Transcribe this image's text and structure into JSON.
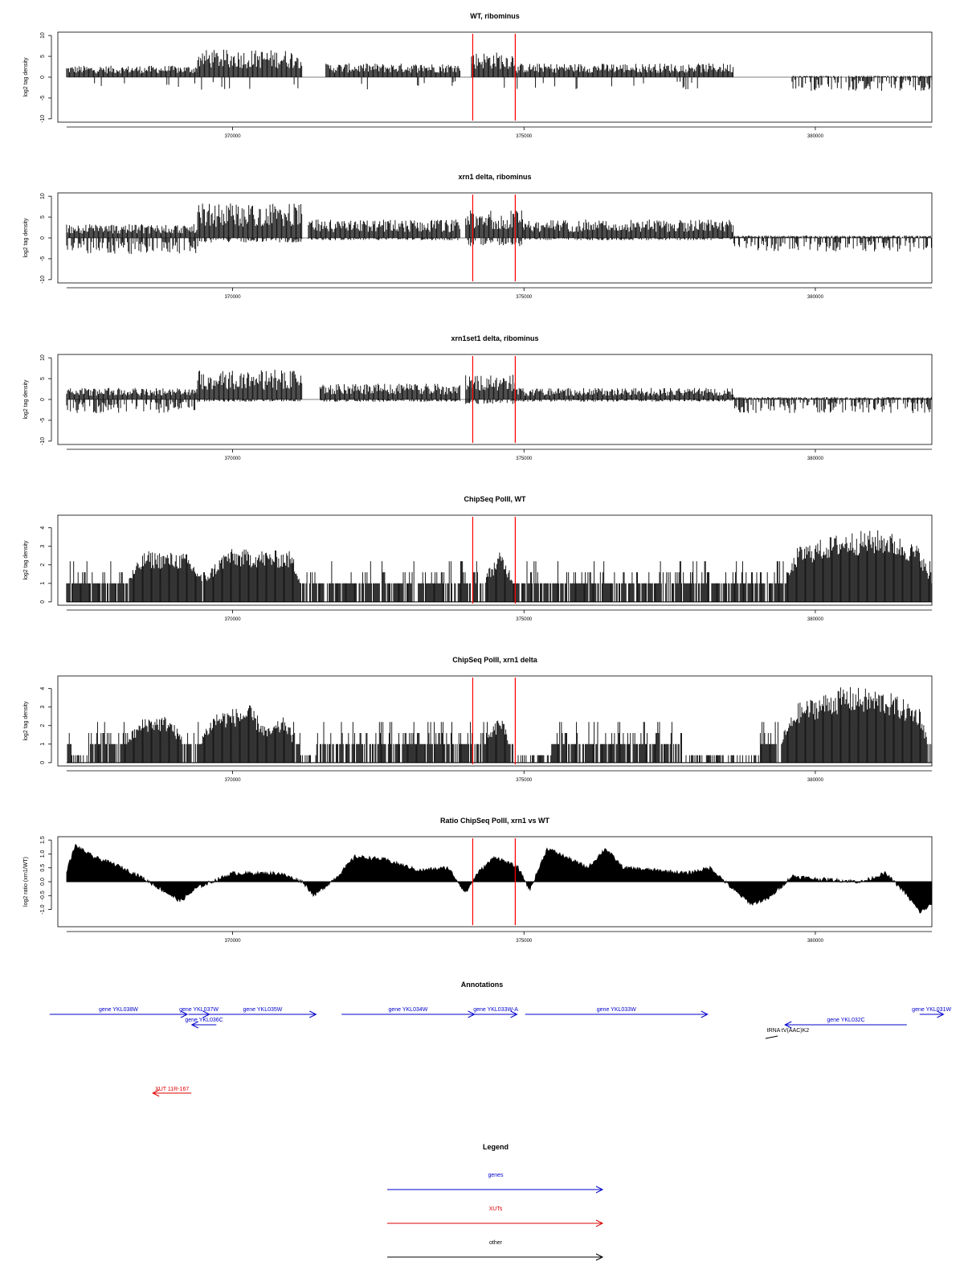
{
  "chart_data": [
    {
      "type": "bar",
      "title": "WT, ribominus",
      "ylabel": "log2 tag density",
      "xlim": [
        367000,
        382000
      ],
      "ylim": [
        -10,
        10
      ],
      "yticks": [
        -10,
        -5,
        0,
        5,
        10
      ],
      "xticks": [
        370000,
        375000,
        380000
      ],
      "marker_lines_x": [
        374120,
        374850
      ],
      "segments": [
        {
          "x": [
            367150,
            369400
          ],
          "y": [
            2.5,
            1.5
          ]
        },
        {
          "x": [
            369400,
            371200
          ],
          "y": [
            6.0,
            0.0
          ]
        },
        {
          "x": [
            371600,
            373900
          ],
          "y": [
            3.0,
            0.5
          ]
        },
        {
          "x": [
            374100,
            374850
          ],
          "y": [
            5.5,
            0.5
          ]
        },
        {
          "x": [
            374850,
            378600
          ],
          "y": [
            3.0,
            0.5
          ]
        },
        {
          "x": [
            379600,
            382000
          ],
          "y": [
            0.3,
            -3.0
          ]
        }
      ]
    },
    {
      "type": "bar",
      "title": "xrn1 delta, ribominus",
      "ylabel": "log2 tag density",
      "xlim": [
        367000,
        382000
      ],
      "ylim": [
        -10,
        10
      ],
      "yticks": [
        -10,
        -5,
        0,
        5,
        10
      ],
      "xticks": [
        370000,
        375000,
        380000
      ],
      "marker_lines_x": [
        374120,
        374850
      ],
      "segments": [
        {
          "x": [
            367150,
            369400
          ],
          "y": [
            3.0,
            -3.5
          ]
        },
        {
          "x": [
            369400,
            371200
          ],
          "y": [
            7.5,
            -1.0
          ]
        },
        {
          "x": [
            371300,
            373900
          ],
          "y": [
            4.0,
            -0.5
          ]
        },
        {
          "x": [
            374000,
            375000
          ],
          "y": [
            6.0,
            -2.0
          ]
        },
        {
          "x": [
            375000,
            378600
          ],
          "y": [
            4.0,
            -0.5
          ]
        },
        {
          "x": [
            378600,
            382000
          ],
          "y": [
            0.5,
            -3.0
          ]
        }
      ]
    },
    {
      "type": "bar",
      "title": "xrn1set1 delta, ribominus",
      "ylabel": "log2 tag density",
      "xlim": [
        367000,
        382000
      ],
      "ylim": [
        -10,
        10
      ],
      "yticks": [
        -10,
        -5,
        0,
        5,
        10
      ],
      "xticks": [
        370000,
        375000,
        380000
      ],
      "marker_lines_x": [
        374120,
        374850
      ],
      "segments": [
        {
          "x": [
            367150,
            369400
          ],
          "y": [
            2.5,
            -3.0
          ]
        },
        {
          "x": [
            369400,
            371200
          ],
          "y": [
            6.5,
            -0.5
          ]
        },
        {
          "x": [
            371500,
            373900
          ],
          "y": [
            3.5,
            -0.5
          ]
        },
        {
          "x": [
            374000,
            374850
          ],
          "y": [
            5.5,
            -1.0
          ]
        },
        {
          "x": [
            374850,
            378600
          ],
          "y": [
            2.5,
            -0.5
          ]
        },
        {
          "x": [
            378600,
            382000
          ],
          "y": [
            0.5,
            -3.0
          ]
        }
      ]
    },
    {
      "type": "bar",
      "title": "ChipSeq PolII, WT",
      "ylabel": "log2 tag density",
      "xlim": [
        367000,
        382000
      ],
      "ylim": [
        0,
        4.5
      ],
      "yticks": [
        0,
        1,
        2,
        3,
        4
      ],
      "xticks": [
        370000,
        375000,
        380000
      ],
      "marker_lines_x": [
        374120,
        374850
      ],
      "profile": [
        {
          "x": 367150,
          "y": 1.0
        },
        {
          "x": 368200,
          "y": 1.2
        },
        {
          "x": 368500,
          "y": 2.4
        },
        {
          "x": 369200,
          "y": 2.3
        },
        {
          "x": 369500,
          "y": 1.2
        },
        {
          "x": 369900,
          "y": 2.5
        },
        {
          "x": 371000,
          "y": 2.4
        },
        {
          "x": 371200,
          "y": 1.0
        },
        {
          "x": 373000,
          "y": 1.0
        },
        {
          "x": 374300,
          "y": 1.2
        },
        {
          "x": 374600,
          "y": 2.4
        },
        {
          "x": 374850,
          "y": 1.0
        },
        {
          "x": 378700,
          "y": 1.0
        },
        {
          "x": 379500,
          "y": 1.2
        },
        {
          "x": 379700,
          "y": 2.6
        },
        {
          "x": 380500,
          "y": 3.3
        },
        {
          "x": 381200,
          "y": 3.4
        },
        {
          "x": 381800,
          "y": 2.6
        },
        {
          "x": 382000,
          "y": 1.0
        }
      ]
    },
    {
      "type": "bar",
      "title": "ChipSeq PolII, xrn1 delta",
      "ylabel": "log2 tag density",
      "xlim": [
        367000,
        382000
      ],
      "ylim": [
        0,
        4.5
      ],
      "yticks": [
        0,
        1,
        2,
        3,
        4
      ],
      "xticks": [
        370000,
        375000,
        380000
      ],
      "marker_lines_x": [
        374120,
        374850
      ],
      "profile": [
        {
          "x": 367150,
          "y": 0.8
        },
        {
          "x": 367300,
          "y": 0.3
        },
        {
          "x": 368100,
          "y": 1.0
        },
        {
          "x": 368500,
          "y": 2.2
        },
        {
          "x": 368900,
          "y": 2.2
        },
        {
          "x": 369300,
          "y": 0.6
        },
        {
          "x": 369700,
          "y": 2.4
        },
        {
          "x": 370300,
          "y": 2.7
        },
        {
          "x": 370600,
          "y": 1.6
        },
        {
          "x": 370900,
          "y": 2.2
        },
        {
          "x": 371200,
          "y": 0.3
        },
        {
          "x": 372000,
          "y": 1.0
        },
        {
          "x": 374300,
          "y": 1.0
        },
        {
          "x": 374600,
          "y": 2.3
        },
        {
          "x": 374850,
          "y": 0.2
        },
        {
          "x": 376500,
          "y": 1.0
        },
        {
          "x": 377500,
          "y": 0.8
        },
        {
          "x": 378000,
          "y": 0.1
        },
        {
          "x": 379300,
          "y": 0.6
        },
        {
          "x": 379700,
          "y": 2.8
        },
        {
          "x": 380500,
          "y": 3.6
        },
        {
          "x": 381200,
          "y": 3.4
        },
        {
          "x": 381800,
          "y": 2.6
        },
        {
          "x": 382000,
          "y": 0.3
        }
      ]
    },
    {
      "type": "area",
      "title": "Ratio ChipSeq PolII, xrn1 vs WT",
      "ylabel": "log2 ratio (xrn1/WT)",
      "xlim": [
        367000,
        382000
      ],
      "ylim": [
        -1.5,
        1.5
      ],
      "yticks": [
        -1.0,
        -0.5,
        0.0,
        0.5,
        1.0,
        1.5
      ],
      "ytick_labels": [
        "-1.0",
        "-0.5",
        "0.0",
        "0.5",
        "1.0",
        "1.5"
      ],
      "xticks": [
        370000,
        375000,
        380000
      ],
      "marker_lines_x": [
        374120,
        374850
      ],
      "profile": [
        {
          "x": 367150,
          "y": 0.4
        },
        {
          "x": 367300,
          "y": 1.3
        },
        {
          "x": 367600,
          "y": 0.9
        },
        {
          "x": 368000,
          "y": 0.6
        },
        {
          "x": 368400,
          "y": 0.2
        },
        {
          "x": 368800,
          "y": -0.3
        },
        {
          "x": 369100,
          "y": -0.7
        },
        {
          "x": 369400,
          "y": -0.2
        },
        {
          "x": 370000,
          "y": 0.3
        },
        {
          "x": 370800,
          "y": 0.3
        },
        {
          "x": 371200,
          "y": 0.0
        },
        {
          "x": 371400,
          "y": -0.5
        },
        {
          "x": 371800,
          "y": 0.2
        },
        {
          "x": 372100,
          "y": 0.9
        },
        {
          "x": 372600,
          "y": 0.8
        },
        {
          "x": 373200,
          "y": 0.4
        },
        {
          "x": 373700,
          "y": 0.5
        },
        {
          "x": 374000,
          "y": -0.4
        },
        {
          "x": 374200,
          "y": 0.3
        },
        {
          "x": 374500,
          "y": 0.9
        },
        {
          "x": 374900,
          "y": 0.5
        },
        {
          "x": 375100,
          "y": -0.3
        },
        {
          "x": 375400,
          "y": 1.2
        },
        {
          "x": 375800,
          "y": 0.8
        },
        {
          "x": 376100,
          "y": 0.5
        },
        {
          "x": 376400,
          "y": 1.2
        },
        {
          "x": 376700,
          "y": 0.5
        },
        {
          "x": 377300,
          "y": 0.4
        },
        {
          "x": 377800,
          "y": 0.3
        },
        {
          "x": 378200,
          "y": 0.5
        },
        {
          "x": 378600,
          "y": -0.3
        },
        {
          "x": 378900,
          "y": -0.8
        },
        {
          "x": 379200,
          "y": -0.6
        },
        {
          "x": 379600,
          "y": 0.2
        },
        {
          "x": 380000,
          "y": 0.1
        },
        {
          "x": 380800,
          "y": 0.0
        },
        {
          "x": 381200,
          "y": 0.3
        },
        {
          "x": 381500,
          "y": -0.3
        },
        {
          "x": 381800,
          "y": -1.1
        },
        {
          "x": 382000,
          "y": -0.8
        }
      ]
    }
  ],
  "annotations": {
    "title": "Annotations",
    "genes": [
      {
        "label": "gene YKL038W",
        "start": 366860,
        "end": 369220,
        "dir": "right",
        "row": 0
      },
      {
        "label": "gene YKL037W",
        "start": 369240,
        "end": 369600,
        "dir": "right",
        "row": 0
      },
      {
        "label": "gene YKL036C",
        "start": 369300,
        "end": 369720,
        "dir": "left",
        "row": 1
      },
      {
        "label": "gene YKL035W",
        "start": 369600,
        "end": 371430,
        "dir": "right",
        "row": 0
      },
      {
        "label": "gene YKL034W",
        "start": 371870,
        "end": 374150,
        "dir": "right",
        "row": 0
      },
      {
        "label": "gene YKL033W-A",
        "start": 374150,
        "end": 374880,
        "dir": "right",
        "row": 0
      },
      {
        "label": "gene YKL033W",
        "start": 375020,
        "end": 378150,
        "dir": "right",
        "row": 0
      },
      {
        "label": "gene YKL032C",
        "start": 379480,
        "end": 381570,
        "dir": "left",
        "row": 1
      },
      {
        "label": "gene YKL031W",
        "start": 381790,
        "end": 382200,
        "dir": "right",
        "row": 0
      }
    ],
    "other": [
      {
        "label": "tRNA tV(AAC)K2",
        "start": 379200,
        "end": 379300,
        "dir": "right"
      }
    ],
    "xuts": [
      {
        "label": "XUT 11R-167",
        "start": 368630,
        "end": 369290,
        "dir": "left"
      }
    ]
  },
  "legend": {
    "title": "Legend",
    "items": [
      {
        "label": "genes",
        "color": "#0000cc"
      },
      {
        "label": "XUTs",
        "color": "#dd0000"
      },
      {
        "label": "other",
        "color": "#000000"
      }
    ]
  },
  "colors": {
    "bars": "#000000",
    "marker_line": "#ff0000",
    "baseline": "#aaaaaa",
    "gene": "#0000cc",
    "xut": "#dd0000",
    "other": "#000000"
  }
}
